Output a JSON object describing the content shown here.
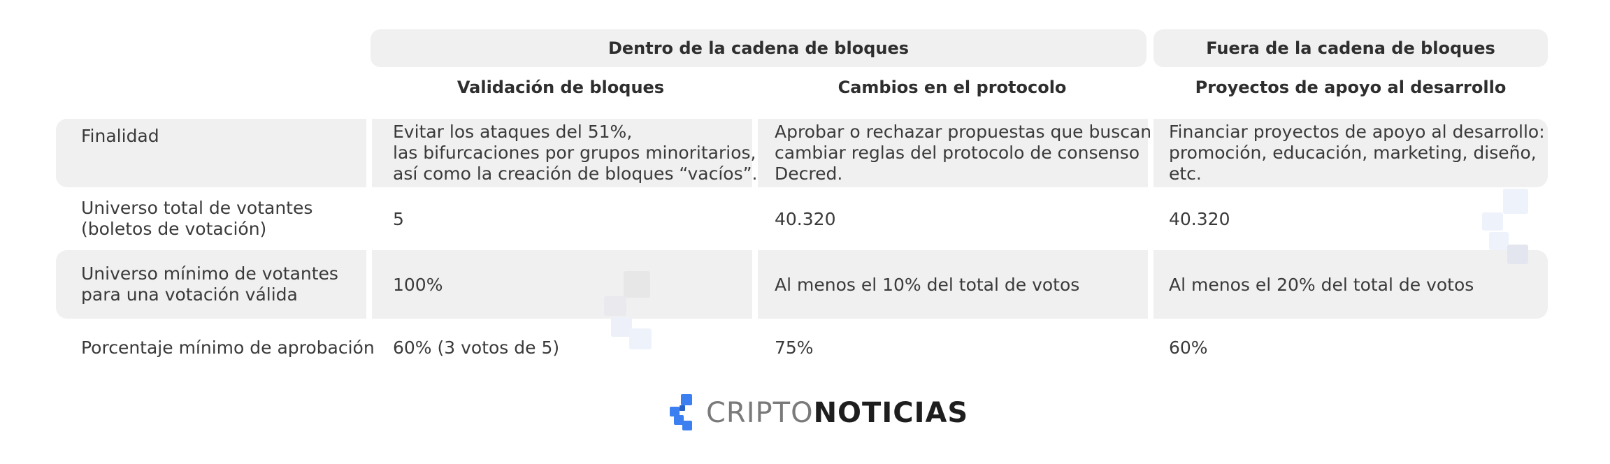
{
  "groups": {
    "onchain": "Dentro de la cadena de bloques",
    "offchain": "Fuera de la cadena de bloques"
  },
  "columns": [
    "Validación de bloques",
    "Cambios en el protocolo",
    "Proyectos de apoyo al desarrollo"
  ],
  "rows": [
    {
      "label": [
        "Finalidad"
      ],
      "cells": [
        [
          "Evitar los ataques del 51%,",
          "las bifurcaciones por grupos minoritarios,",
          "así como la creación de bloques “vacíos”."
        ],
        [
          "Aprobar o rechazar propuestas que buscan",
          "cambiar reglas del protocolo de consenso",
          "Decred."
        ],
        [
          "Financiar proyectos de apoyo al desarrollo:",
          "promoción, educación, marketing, diseño,",
          "etc."
        ]
      ]
    },
    {
      "label": [
        "Universo total de votantes",
        "(boletos de votación)"
      ],
      "cells": [
        [
          "5"
        ],
        [
          "40.320"
        ],
        [
          "40.320"
        ]
      ]
    },
    {
      "label": [
        "Universo mínimo de votantes",
        "para una votación válida"
      ],
      "cells": [
        [
          "100%"
        ],
        [
          "Al menos el 10% del total de votos"
        ],
        [
          "Al menos el 20% del total de votos"
        ]
      ]
    },
    {
      "label": [
        "Porcentaje mínimo de aprobación"
      ],
      "cells": [
        [
          "60% (3 votos de 5)"
        ],
        [
          "75%"
        ],
        [
          "60%"
        ]
      ]
    }
  ],
  "brand": {
    "part1": "CRIPTO",
    "part2": "NOTICIAS",
    "color_light": "#7a7a7a",
    "color_dark": "#1e1e1e",
    "accent": "#3b7ff0"
  }
}
